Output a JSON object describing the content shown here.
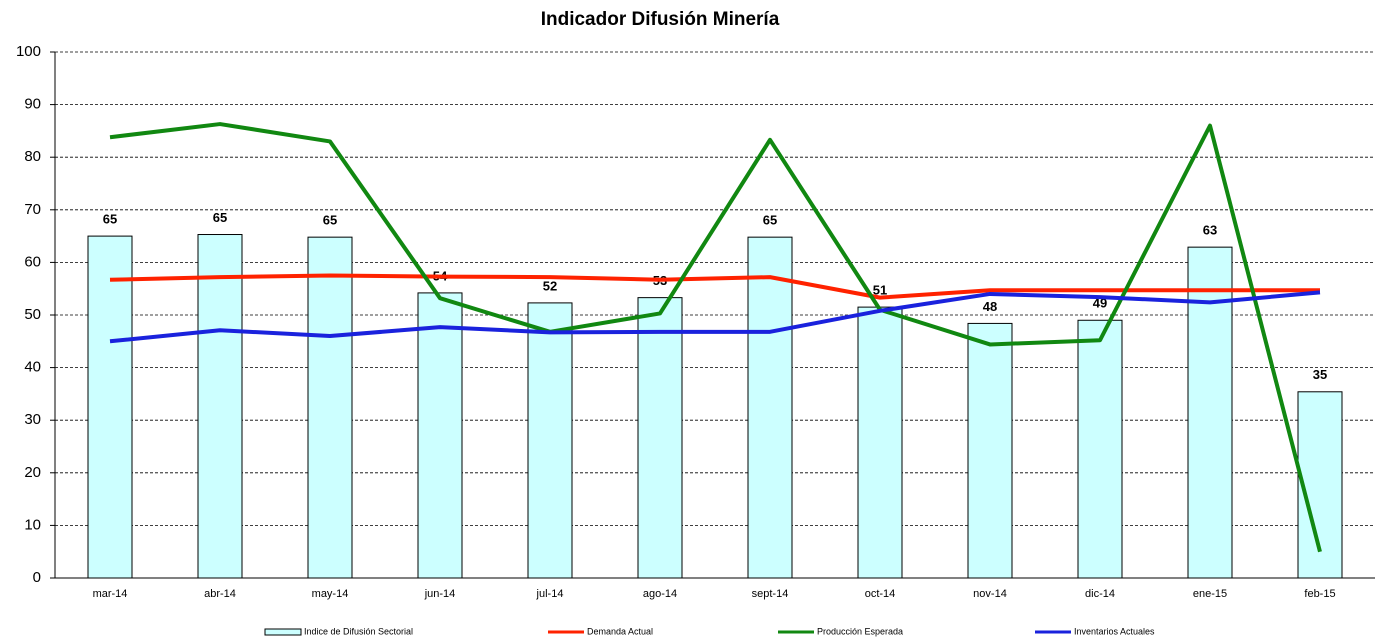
{
  "chart_data": {
    "type": "combo",
    "title": "Indicador Difusión Minería",
    "categories": [
      "mar-14",
      "abr-14",
      "may-14",
      "jun-14",
      "jul-14",
      "ago-14",
      "sept-14",
      "oct-14",
      "nov-14",
      "dic-14",
      "ene-15",
      "feb-15"
    ],
    "ylim": [
      0,
      100
    ],
    "yticks": [
      0,
      10,
      20,
      30,
      40,
      50,
      60,
      70,
      80,
      90,
      100
    ],
    "grid": true,
    "legend": "bottom",
    "series": [
      {
        "name": "Indice de Difusión Sectorial",
        "type": "bar",
        "color": "#ccffff",
        "values": [
          65,
          65.3,
          64.8,
          54.2,
          52.3,
          53.3,
          64.8,
          51.5,
          48.4,
          49,
          62.9,
          35.4
        ],
        "value_labels": [
          "65",
          "65",
          "65",
          "54",
          "52",
          "53",
          "65",
          "51",
          "48",
          "49",
          "63",
          "35"
        ]
      },
      {
        "name": "Demanda Actual",
        "type": "line",
        "color": "#ff2200",
        "values": [
          56.7,
          57.2,
          57.5,
          57.3,
          57.2,
          56.7,
          57.2,
          53.3,
          54.7,
          54.7,
          54.7,
          54.7
        ]
      },
      {
        "name": "Producción Esperada",
        "type": "line",
        "color": "#118811",
        "values": [
          83.8,
          86.3,
          83,
          53.2,
          46.8,
          50.3,
          83.3,
          51,
          44.4,
          45.2,
          86,
          5
        ]
      },
      {
        "name": "Inventarios Actuales",
        "type": "line",
        "color": "#1a22dd",
        "values": [
          45,
          47.1,
          46,
          47.7,
          46.7,
          46.8,
          46.8,
          50.8,
          54,
          53.4,
          52.4,
          54.3
        ]
      }
    ]
  }
}
